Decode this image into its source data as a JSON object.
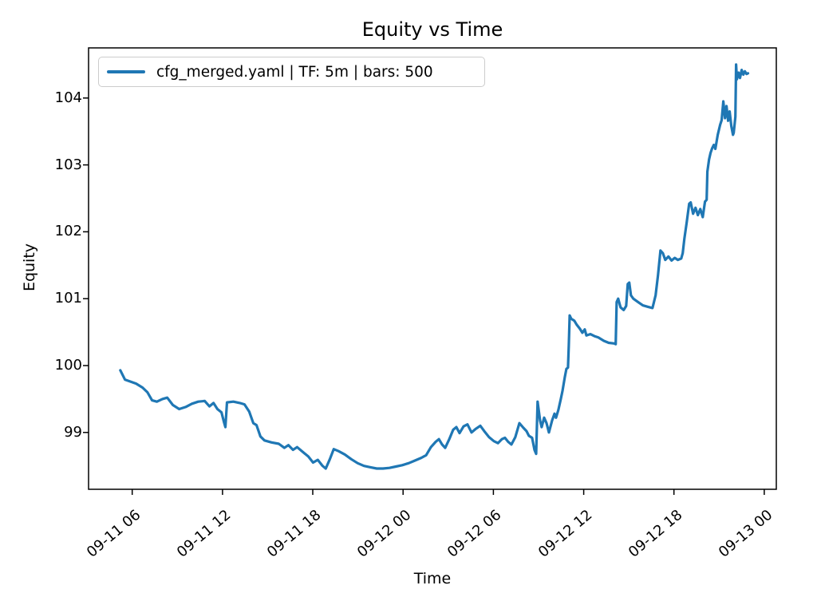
{
  "figure": {
    "background": "#ffffff",
    "text_color": "#000000"
  },
  "chart_data": {
    "type": "line",
    "title": "Equity vs Time",
    "xlabel": "Time",
    "ylabel": "Equity",
    "grid": false,
    "line_color": "#1f77b4",
    "line_width": 3.2,
    "axis_color": "#000000",
    "legend": {
      "position": "upper left",
      "border_color": "#cccccc",
      "entries": [
        {
          "label": "cfg_merged.yaml | TF: 5m | bars: 500",
          "color": "#1f77b4"
        }
      ]
    },
    "xlim_hours": [
      3.1,
      48.8
    ],
    "ylim": [
      98.15,
      104.75
    ],
    "xtick_hours": [
      6,
      12,
      18,
      24,
      30,
      36,
      42,
      48
    ],
    "xtick_labels": [
      "09-11 06",
      "09-11 12",
      "09-11 18",
      "09-12 00",
      "09-12 06",
      "09-12 12",
      "09-12 18",
      "09-13 00"
    ],
    "ytick_values": [
      99,
      100,
      101,
      102,
      103,
      104
    ],
    "series": [
      {
        "name": "cfg_merged.yaml | TF: 5m | bars: 500",
        "x_hours": [
          5.21,
          5.52,
          5.89,
          6.26,
          6.69,
          7.01,
          7.32,
          7.64,
          8.01,
          8.33,
          8.7,
          9.12,
          9.55,
          9.97,
          10.39,
          10.82,
          11.13,
          11.4,
          11.66,
          11.93,
          12.09,
          12.19,
          12.3,
          12.72,
          13.15,
          13.46,
          13.78,
          14.05,
          14.26,
          14.52,
          14.79,
          15.26,
          15.74,
          16.11,
          16.38,
          16.69,
          16.96,
          17.33,
          17.7,
          18.02,
          18.33,
          18.65,
          18.86,
          19.13,
          19.39,
          19.71,
          20.13,
          20.56,
          20.98,
          21.4,
          21.83,
          22.25,
          22.67,
          23.1,
          23.52,
          23.94,
          24.37,
          24.79,
          25.21,
          25.53,
          25.85,
          26.17,
          26.38,
          26.59,
          26.8,
          27.07,
          27.33,
          27.54,
          27.75,
          28.02,
          28.28,
          28.55,
          28.81,
          29.13,
          29.39,
          29.71,
          30.03,
          30.3,
          30.56,
          30.77,
          30.98,
          31.2,
          31.46,
          31.73,
          31.99,
          32.2,
          32.36,
          32.57,
          32.73,
          32.84,
          32.94,
          33.1,
          33.21,
          33.37,
          33.53,
          33.69,
          33.9,
          34.06,
          34.16,
          34.32,
          34.48,
          34.59,
          34.74,
          34.85,
          34.96,
          35.01,
          35.07,
          35.17,
          35.38,
          35.54,
          35.75,
          35.91,
          36.07,
          36.18,
          36.44,
          36.71,
          36.97,
          37.34,
          37.66,
          38.03,
          38.13,
          38.19,
          38.29,
          38.45,
          38.66,
          38.82,
          38.93,
          39.03,
          39.14,
          39.3,
          39.61,
          39.93,
          40.25,
          40.57,
          40.78,
          40.94,
          41.1,
          41.26,
          41.42,
          41.63,
          41.84,
          42.05,
          42.26,
          42.48,
          42.58,
          42.69,
          42.85,
          43.01,
          43.11,
          43.27,
          43.43,
          43.59,
          43.75,
          43.91,
          44.06,
          44.17,
          44.22,
          44.33,
          44.43,
          44.54,
          44.65,
          44.75,
          44.91,
          45.07,
          45.17,
          45.28,
          45.39,
          45.49,
          45.6,
          45.7,
          45.81,
          45.92,
          45.97,
          46.08,
          46.13,
          46.18,
          46.29,
          46.39,
          46.5,
          46.61,
          46.71,
          46.82,
          46.92
        ],
        "equity": [
          99.93,
          99.79,
          99.76,
          99.73,
          99.67,
          99.6,
          99.48,
          99.46,
          99.5,
          99.52,
          99.41,
          99.35,
          99.38,
          99.43,
          99.46,
          99.47,
          99.39,
          99.44,
          99.35,
          99.3,
          99.16,
          99.08,
          99.45,
          99.46,
          99.44,
          99.42,
          99.31,
          99.14,
          99.11,
          98.94,
          98.88,
          98.85,
          98.83,
          98.77,
          98.81,
          98.74,
          98.78,
          98.71,
          98.64,
          98.55,
          98.59,
          98.5,
          98.46,
          98.6,
          98.75,
          98.72,
          98.67,
          98.6,
          98.54,
          98.5,
          98.48,
          98.46,
          98.46,
          98.47,
          98.49,
          98.51,
          98.54,
          98.58,
          98.62,
          98.66,
          98.78,
          98.86,
          98.9,
          98.82,
          98.77,
          98.9,
          99.04,
          99.08,
          98.99,
          99.09,
          99.12,
          99.0,
          99.05,
          99.1,
          99.02,
          98.93,
          98.87,
          98.84,
          98.9,
          98.92,
          98.86,
          98.82,
          98.93,
          99.14,
          99.07,
          99.02,
          98.95,
          98.92,
          98.74,
          98.68,
          99.46,
          99.18,
          99.08,
          99.22,
          99.14,
          99.0,
          99.18,
          99.28,
          99.22,
          99.34,
          99.5,
          99.62,
          99.82,
          99.95,
          99.97,
          100.3,
          100.75,
          100.7,
          100.67,
          100.61,
          100.55,
          100.49,
          100.54,
          100.45,
          100.47,
          100.44,
          100.42,
          100.37,
          100.34,
          100.33,
          100.32,
          100.95,
          101.0,
          100.87,
          100.83,
          100.89,
          101.22,
          101.24,
          101.05,
          101.0,
          100.95,
          100.9,
          100.88,
          100.86,
          101.05,
          101.35,
          101.72,
          101.68,
          101.58,
          101.63,
          101.57,
          101.61,
          101.58,
          101.6,
          101.68,
          101.9,
          102.15,
          102.42,
          102.44,
          102.27,
          102.36,
          102.25,
          102.34,
          102.22,
          102.45,
          102.48,
          102.9,
          103.08,
          103.18,
          103.25,
          103.3,
          103.24,
          103.45,
          103.6,
          103.67,
          103.95,
          103.7,
          103.88,
          103.66,
          103.8,
          103.58,
          103.45,
          103.48,
          103.72,
          104.5,
          104.28,
          104.38,
          104.3,
          104.42,
          104.35,
          104.4,
          104.36,
          104.37
        ]
      }
    ]
  }
}
